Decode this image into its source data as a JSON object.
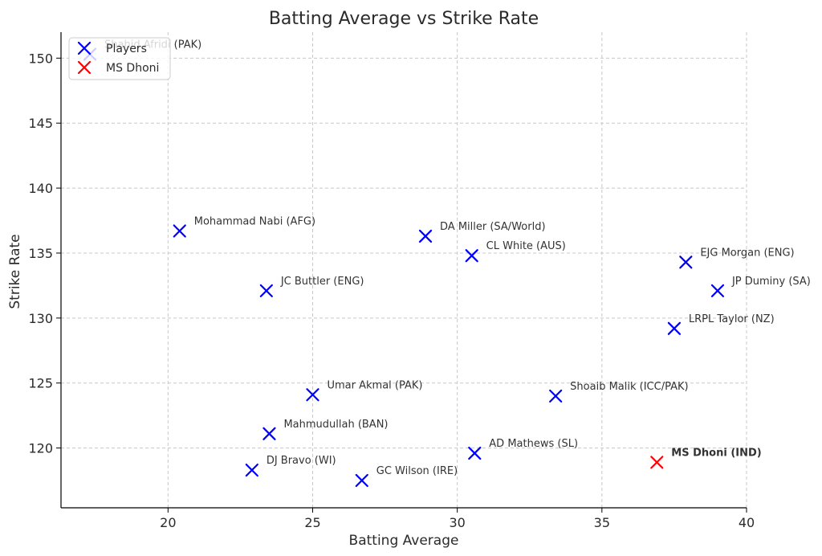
{
  "chart_data": {
    "type": "scatter",
    "title": "Batting Average vs Strike Rate",
    "xlabel": "Batting Average",
    "ylabel": "Strike Rate",
    "xlim": [
      16.3,
      40.0
    ],
    "ylim": [
      115.4,
      152.0
    ],
    "xticks": [
      20,
      25,
      30,
      35,
      40
    ],
    "yticks": [
      120,
      125,
      130,
      135,
      140,
      145,
      150
    ],
    "grid": true,
    "legend_position": "top-left",
    "colors": {
      "Players": "#0000ff",
      "MS Dhoni": "#ff0000"
    },
    "series": [
      {
        "name": "Players",
        "points": [
          {
            "label": "Shahid Afridi (PAK)",
            "x": 17.3,
            "y": 150.3
          },
          {
            "label": "Mohammad Nabi (AFG)",
            "x": 20.4,
            "y": 136.7
          },
          {
            "label": "JC Buttler (ENG)",
            "x": 23.4,
            "y": 132.1
          },
          {
            "label": "DA Miller (SA/World)",
            "x": 28.9,
            "y": 136.3
          },
          {
            "label": "CL White (AUS)",
            "x": 30.5,
            "y": 134.8
          },
          {
            "label": "EJG Morgan (ENG)",
            "x": 37.9,
            "y": 134.3
          },
          {
            "label": "JP Duminy (SA)",
            "x": 39.0,
            "y": 132.1
          },
          {
            "label": "LRPL Taylor (NZ)",
            "x": 37.5,
            "y": 129.2
          },
          {
            "label": "Umar Akmal (PAK)",
            "x": 25.0,
            "y": 124.1
          },
          {
            "label": "Shoaib Malik (ICC/PAK)",
            "x": 33.4,
            "y": 124.0
          },
          {
            "label": "Mahmudullah (BAN)",
            "x": 23.5,
            "y": 121.1
          },
          {
            "label": "AD Mathews (SL)",
            "x": 30.6,
            "y": 119.6
          },
          {
            "label": "DJ Bravo (WI)",
            "x": 22.9,
            "y": 118.3
          },
          {
            "label": "GC Wilson (IRE)",
            "x": 26.7,
            "y": 117.5
          }
        ]
      },
      {
        "name": "MS Dhoni",
        "points": [
          {
            "label": "MS Dhoni (IND)",
            "x": 36.9,
            "y": 118.9
          }
        ]
      }
    ]
  }
}
